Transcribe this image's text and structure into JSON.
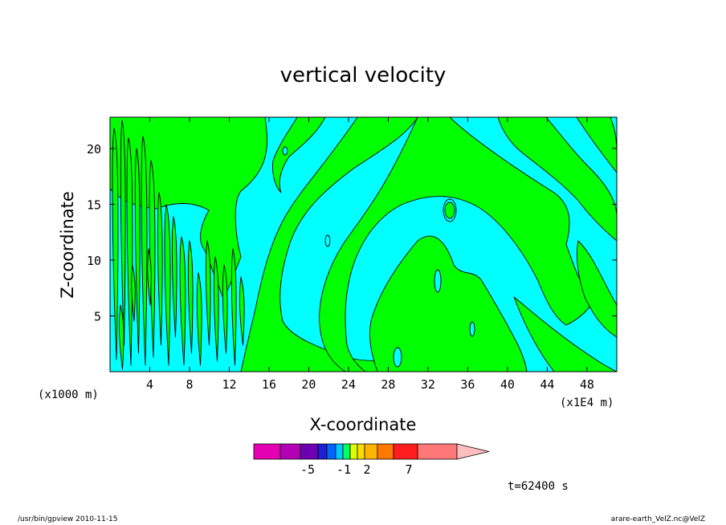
{
  "chart_data": {
    "type": "heatmap",
    "title": "vertical velocity",
    "xlabel": "X-coordinate",
    "ylabel": "Z-coordinate",
    "x_units_left": "(x1000 m)",
    "x_units_right": "(x1E4 m)",
    "xlim": [
      0,
      51
    ],
    "ylim": [
      0,
      22.8
    ],
    "x_ticks": [
      4,
      8,
      12,
      16,
      20,
      24,
      28,
      32,
      36,
      40,
      44,
      48
    ],
    "y_ticks": [
      5,
      10,
      15,
      20
    ],
    "x_tick_labels": [
      "4",
      "8",
      "12",
      "16",
      "20",
      "24",
      "28",
      "32",
      "36",
      "40",
      "44",
      "48"
    ],
    "y_tick_labels": [
      "5",
      "10",
      "15",
      "20"
    ],
    "grid": false,
    "fill_colors": {
      "negative": "#00ffff",
      "positive": "#00ff00"
    },
    "colorbar": {
      "colors": [
        "#e600b4",
        "#b400b4",
        "#6e00b4",
        "#1e1ed2",
        "#0064ff",
        "#00c8ff",
        "#00ff64",
        "#dcff00",
        "#ffdc00",
        "#ffb400",
        "#ff7800",
        "#ff1e1e",
        "#ff7878",
        "#ffbebe"
      ],
      "labels": [
        "-5",
        "-1",
        "2",
        "7"
      ],
      "label_positions": [
        -5,
        -1,
        2,
        7
      ]
    },
    "annotation": "t=62400 s"
  },
  "footer": {
    "left": "/usr/bin/gpview  2010-11-15",
    "right": "arare-earth_VelZ.nc@VelZ"
  }
}
